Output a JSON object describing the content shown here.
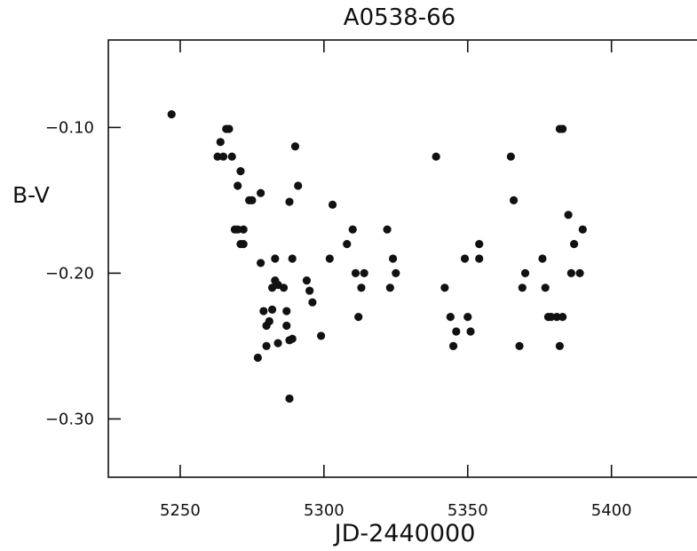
{
  "chart_data": {
    "type": "scatter",
    "title": "A0538-66",
    "xlabel": "JD-2440000",
    "ylabel": "B-V",
    "xlim": [
      5225,
      5435
    ],
    "ylim": [
      -0.04,
      -0.34
    ],
    "y_inverted": true,
    "grid": false,
    "x_ticks": [
      {
        "value": 5250,
        "label": "5250"
      },
      {
        "value": 5300,
        "label": "5300"
      },
      {
        "value": 5350,
        "label": "5350"
      },
      {
        "value": 5400,
        "label": "5400"
      }
    ],
    "y_ticks": [
      {
        "value": -0.1,
        "label": "−0.10"
      },
      {
        "value": -0.2,
        "label": "−0.20"
      },
      {
        "value": -0.3,
        "label": "−0.30"
      }
    ],
    "points": [
      [
        5247,
        -0.091
      ],
      [
        5263,
        -0.12
      ],
      [
        5264,
        -0.11
      ],
      [
        5265,
        -0.12
      ],
      [
        5266,
        -0.101
      ],
      [
        5267,
        -0.101
      ],
      [
        5268,
        -0.12
      ],
      [
        5269,
        -0.17
      ],
      [
        5270,
        -0.14
      ],
      [
        5270,
        -0.17
      ],
      [
        5271,
        -0.18
      ],
      [
        5271,
        -0.13
      ],
      [
        5272,
        -0.17
      ],
      [
        5272,
        -0.18
      ],
      [
        5274,
        -0.15
      ],
      [
        5275,
        -0.15
      ],
      [
        5278,
        -0.145
      ],
      [
        5278,
        -0.193
      ],
      [
        5279,
        -0.226
      ],
      [
        5280,
        -0.236
      ],
      [
        5280,
        -0.25
      ],
      [
        5281,
        -0.233
      ],
      [
        5282,
        -0.225
      ],
      [
        5282,
        -0.21
      ],
      [
        5283,
        -0.205
      ],
      [
        5283,
        -0.19
      ],
      [
        5284,
        -0.208
      ],
      [
        5284,
        -0.248
      ],
      [
        5277,
        -0.258
      ],
      [
        5286,
        -0.21
      ],
      [
        5287,
        -0.226
      ],
      [
        5287,
        -0.236
      ],
      [
        5288,
        -0.151
      ],
      [
        5288,
        -0.246
      ],
      [
        5288,
        -0.286
      ],
      [
        5289,
        -0.19
      ],
      [
        5289,
        -0.245
      ],
      [
        5290,
        -0.113
      ],
      [
        5291,
        -0.14
      ],
      [
        5294,
        -0.205
      ],
      [
        5295,
        -0.212
      ],
      [
        5296,
        -0.22
      ],
      [
        5299,
        -0.243
      ],
      [
        5302,
        -0.19
      ],
      [
        5303,
        -0.153
      ],
      [
        5308,
        -0.18
      ],
      [
        5310,
        -0.17
      ],
      [
        5311,
        -0.2
      ],
      [
        5312,
        -0.23
      ],
      [
        5313,
        -0.21
      ],
      [
        5314,
        -0.2
      ],
      [
        5322,
        -0.17
      ],
      [
        5323,
        -0.21
      ],
      [
        5324,
        -0.19
      ],
      [
        5325,
        -0.2
      ],
      [
        5339,
        -0.12
      ],
      [
        5342,
        -0.21
      ],
      [
        5344,
        -0.23
      ],
      [
        5345,
        -0.25
      ],
      [
        5346,
        -0.24
      ],
      [
        5349,
        -0.19
      ],
      [
        5350,
        -0.23
      ],
      [
        5351,
        -0.24
      ],
      [
        5354,
        -0.18
      ],
      [
        5354,
        -0.19
      ],
      [
        5365,
        -0.12
      ],
      [
        5366,
        -0.15
      ],
      [
        5368,
        -0.25
      ],
      [
        5369,
        -0.21
      ],
      [
        5370,
        -0.2
      ],
      [
        5376,
        -0.19
      ],
      [
        5377,
        -0.21
      ],
      [
        5378,
        -0.23
      ],
      [
        5379,
        -0.23
      ],
      [
        5381,
        -0.23
      ],
      [
        5382,
        -0.101
      ],
      [
        5382,
        -0.25
      ],
      [
        5383,
        -0.23
      ],
      [
        5383,
        -0.101
      ],
      [
        5385,
        -0.16
      ],
      [
        5386,
        -0.2
      ],
      [
        5387,
        -0.18
      ],
      [
        5389,
        -0.2
      ],
      [
        5390,
        -0.17
      ]
    ]
  }
}
